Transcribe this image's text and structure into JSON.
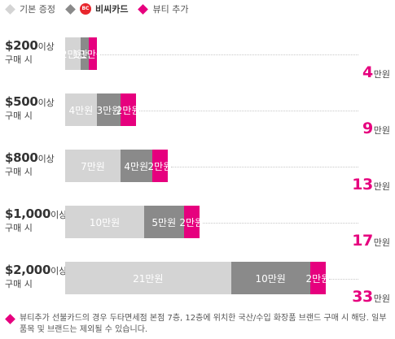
{
  "legend": [
    {
      "label": "기본 증정",
      "color": "#d4d4d4",
      "icon": "diamond"
    },
    {
      "label": "비씨카드",
      "color": "#8a8a8a",
      "icon": "bc-card-logo",
      "logo_text": "BC"
    },
    {
      "label": "뷰티 추가",
      "color": "#e6007e",
      "icon": "diamond"
    }
  ],
  "chart_data": {
    "type": "bar",
    "orientation": "horizontal",
    "stacked": true,
    "unit": "만원",
    "categories": [
      {
        "amount": "$200",
        "suffix": "이상",
        "sub": "구매 시"
      },
      {
        "amount": "$500",
        "suffix": "이상",
        "sub": "구매 시"
      },
      {
        "amount": "$800",
        "suffix": "이상",
        "sub": "구매 시"
      },
      {
        "amount": "$1,000",
        "suffix": "이상",
        "sub": "구매 시"
      },
      {
        "amount": "$2,000",
        "suffix": "이상",
        "sub": "구매 시"
      }
    ],
    "series": [
      {
        "name": "기본 증정",
        "color": "#d4d4d4",
        "values": [
          2,
          4,
          7,
          10,
          21
        ]
      },
      {
        "name": "비씨카드",
        "color": "#8a8a8a",
        "values": [
          1,
          3,
          4,
          5,
          10
        ]
      },
      {
        "name": "뷰티 추가",
        "color": "#e6007e",
        "values": [
          1,
          2,
          2,
          2,
          2
        ]
      }
    ],
    "segment_labels": [
      [
        "2만원",
        "1만원",
        "1만원"
      ],
      [
        "4만원",
        "3만원",
        "2만원"
      ],
      [
        "7만원",
        "4만원",
        "2만원"
      ],
      [
        "10만원",
        "5만원",
        "2만원"
      ],
      [
        "21만원",
        "10만원",
        "2만원"
      ]
    ],
    "totals": [
      4,
      9,
      13,
      17,
      33
    ],
    "total_unit": "만원"
  },
  "footnote": "뷰티추가 선불카드의 경우 두타면세점 본점 7층, 12층에 위치한 국산/수입 화장품 브랜드 구매 시 해당. 일부 품목 및 브랜드는 제외될 수 있습니다."
}
